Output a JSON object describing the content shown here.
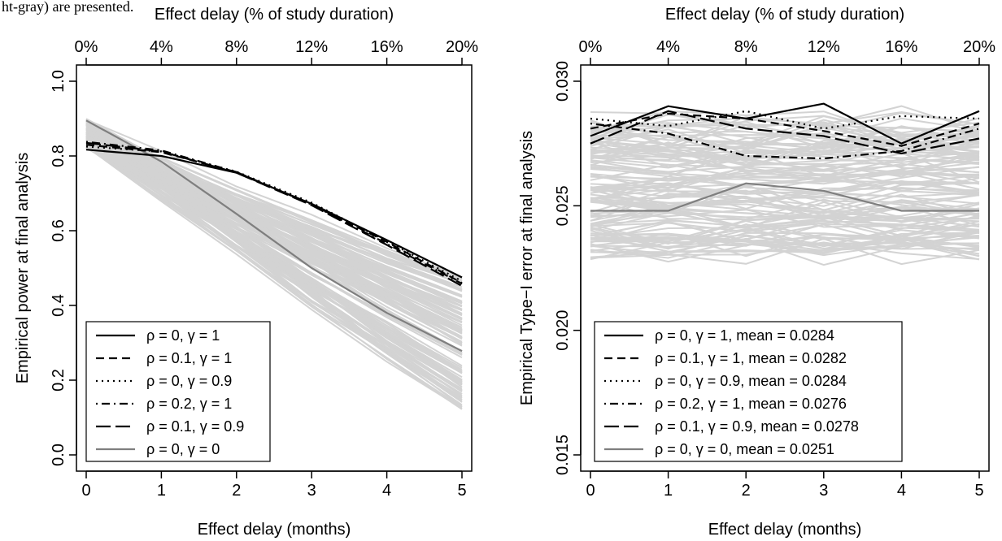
{
  "header_fragment": "ht-gray) are presented.",
  "chart_data": [
    {
      "type": "line",
      "xlabel": "Effect delay (months)",
      "x2label": "Effect delay (% of study duration)",
      "ylabel": "Empirical power at final analysis",
      "x": [
        0,
        1,
        2,
        3,
        4,
        5
      ],
      "xlim": [
        0,
        5
      ],
      "x_ticks": [
        "0",
        "1",
        "2",
        "3",
        "4",
        "5"
      ],
      "x2_ticks": [
        "0%",
        "4%",
        "8%",
        "12%",
        "16%",
        "20%"
      ],
      "ylim": [
        0,
        1
      ],
      "y_ticks": [
        0.0,
        0.2,
        0.4,
        0.6,
        0.8,
        1.0
      ],
      "y_tick_labels": [
        "0.0",
        "0.2",
        "0.4",
        "0.6",
        "0.8",
        "1.0"
      ],
      "legend_position": "bottom-left",
      "series": [
        {
          "name": "ρ = 0, γ = 1",
          "style": "solid",
          "color": "#000000",
          "values": [
            0.817,
            0.8,
            0.755,
            0.672,
            0.575,
            0.475
          ]
        },
        {
          "name": "ρ = 0.1, γ = 1",
          "style": "dashed",
          "color": "#000000",
          "values": [
            0.83,
            0.81,
            0.757,
            0.67,
            0.57,
            0.46
          ]
        },
        {
          "name": "ρ = 0, γ = 0.9",
          "style": "dotted",
          "color": "#000000",
          "values": [
            0.825,
            0.812,
            0.758,
            0.675,
            0.572,
            0.465
          ]
        },
        {
          "name": "ρ = 0.2, γ = 1",
          "style": "dotdash",
          "color": "#000000",
          "values": [
            0.838,
            0.815,
            0.757,
            0.67,
            0.565,
            0.458
          ]
        },
        {
          "name": "ρ = 0.1, γ = 0.9",
          "style": "longdash",
          "color": "#000000",
          "values": [
            0.835,
            0.812,
            0.755,
            0.668,
            0.562,
            0.452
          ]
        },
        {
          "name": "ρ = 0, γ = 0",
          "style": "solid",
          "color": "#7f7f7f",
          "values": [
            0.895,
            0.785,
            0.645,
            0.5,
            0.38,
            0.278
          ]
        }
      ],
      "background_series_color": "#d3d3d3"
    },
    {
      "type": "line",
      "xlabel": "Effect delay (months)",
      "x2label": "Effect delay (% of study duration)",
      "ylabel": "Empirical Type−I error at final analysis",
      "x": [
        0,
        1,
        2,
        3,
        4,
        5
      ],
      "xlim": [
        0,
        5
      ],
      "x_ticks": [
        "0",
        "1",
        "2",
        "3",
        "4",
        "5"
      ],
      "x2_ticks": [
        "0%",
        "4%",
        "8%",
        "12%",
        "16%",
        "20%"
      ],
      "ylim": [
        0.015,
        0.03
      ],
      "y_ticks": [
        0.015,
        0.02,
        0.025,
        0.03
      ],
      "y_tick_labels": [
        "0.015",
        "0.020",
        "0.025",
        "0.030"
      ],
      "legend_position": "bottom-left",
      "series": [
        {
          "name": "ρ = 0, γ = 1, mean = 0.0284",
          "style": "solid",
          "color": "#000000",
          "values": [
            0.0278,
            0.029,
            0.0285,
            0.0291,
            0.0275,
            0.0288
          ]
        },
        {
          "name": "ρ = 0.1, γ = 1, mean = 0.0282",
          "style": "dashed",
          "color": "#000000",
          "values": [
            0.0281,
            0.0287,
            0.0285,
            0.028,
            0.0274,
            0.0283
          ]
        },
        {
          "name": "ρ = 0, γ = 0.9, mean = 0.0284",
          "style": "dotted",
          "color": "#000000",
          "values": [
            0.0285,
            0.0282,
            0.0288,
            0.0281,
            0.0286,
            0.0285
          ]
        },
        {
          "name": "ρ = 0.2, γ = 1, mean = 0.0276",
          "style": "dotdash",
          "color": "#000000",
          "values": [
            0.0283,
            0.0279,
            0.027,
            0.0269,
            0.0272,
            0.0281
          ]
        },
        {
          "name": "ρ = 0.1, γ = 0.9, mean = 0.0278",
          "style": "longdash",
          "color": "#000000",
          "values": [
            0.0275,
            0.0288,
            0.0281,
            0.0278,
            0.0271,
            0.0277
          ]
        },
        {
          "name": "ρ = 0, γ = 0, mean = 0.0251",
          "style": "solid",
          "color": "#7f7f7f",
          "values": [
            0.0248,
            0.0248,
            0.0259,
            0.0256,
            0.0248,
            0.0248
          ]
        }
      ],
      "background_series_color": "#d3d3d3"
    }
  ]
}
